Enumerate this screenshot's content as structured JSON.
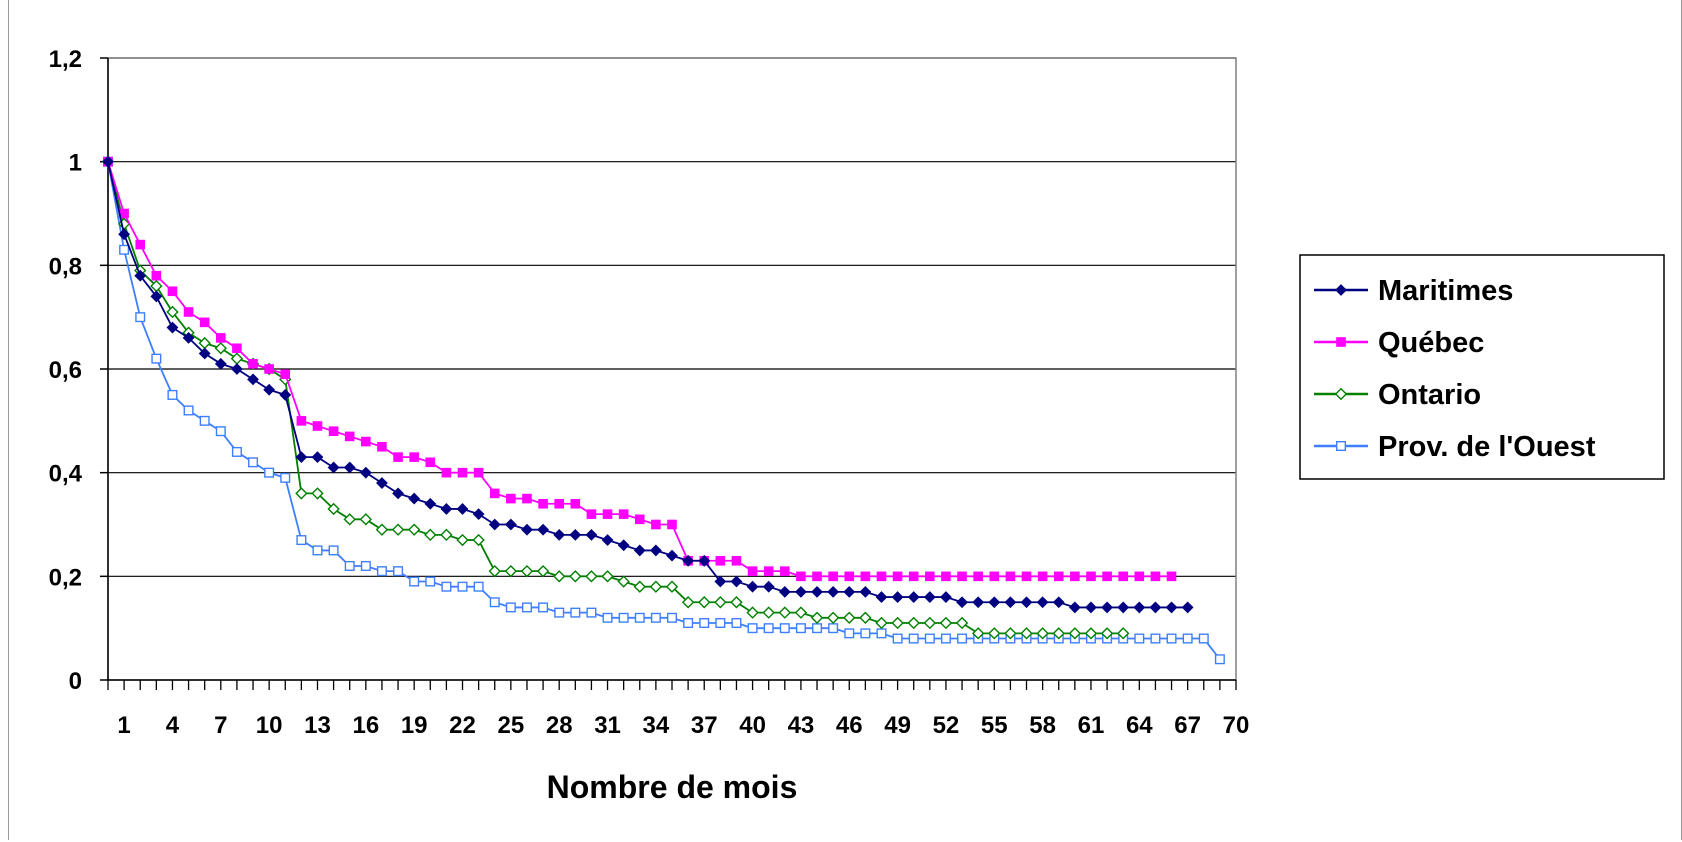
{
  "chart_data": {
    "type": "line",
    "title": "",
    "xlabel": "Nombre de mois",
    "ylabel": "",
    "ylim": [
      0,
      1.2
    ],
    "xlim": [
      0,
      70
    ],
    "y_ticks": [
      "0",
      "0,2",
      "0,4",
      "0,6",
      "0,8",
      "1",
      "1,2"
    ],
    "x_tick_labels": [
      "1",
      "4",
      "7",
      "10",
      "13",
      "16",
      "19",
      "22",
      "25",
      "28",
      "31",
      "34",
      "37",
      "40",
      "43",
      "46",
      "49",
      "52",
      "55",
      "58",
      "61",
      "64",
      "67",
      "70"
    ],
    "grid": "horizontal major gridlines",
    "legend_position": "right",
    "series": [
      {
        "name": "Maritimes",
        "color": "#000080",
        "marker": "diamond-filled",
        "values": [
          1,
          0.86,
          0.78,
          0.74,
          0.68,
          0.66,
          0.63,
          0.61,
          0.6,
          0.58,
          0.56,
          0.55,
          0.43,
          0.43,
          0.41,
          0.41,
          0.4,
          0.38,
          0.36,
          0.35,
          0.34,
          0.33,
          0.33,
          0.32,
          0.3,
          0.3,
          0.29,
          0.29,
          0.28,
          0.28,
          0.28,
          0.27,
          0.26,
          0.25,
          0.25,
          0.24,
          0.23,
          0.23,
          0.19,
          0.19,
          0.18,
          0.18,
          0.17,
          0.17,
          0.17,
          0.17,
          0.17,
          0.17,
          0.16,
          0.16,
          0.16,
          0.16,
          0.16,
          0.15,
          0.15,
          0.15,
          0.15,
          0.15,
          0.15,
          0.15,
          0.14,
          0.14,
          0.14,
          0.14,
          0.14,
          0.14,
          0.14,
          0.14
        ]
      },
      {
        "name": "Québec",
        "color": "#FF00FF",
        "marker": "square-filled",
        "values": [
          1,
          0.9,
          0.84,
          0.78,
          0.75,
          0.71,
          0.69,
          0.66,
          0.64,
          0.61,
          0.6,
          0.59,
          0.5,
          0.49,
          0.48,
          0.47,
          0.46,
          0.45,
          0.43,
          0.43,
          0.42,
          0.4,
          0.4,
          0.4,
          0.36,
          0.35,
          0.35,
          0.34,
          0.34,
          0.34,
          0.32,
          0.32,
          0.32,
          0.31,
          0.3,
          0.3,
          0.23,
          0.23,
          0.23,
          0.23,
          0.21,
          0.21,
          0.21,
          0.2,
          0.2,
          0.2,
          0.2,
          0.2,
          0.2,
          0.2,
          0.2,
          0.2,
          0.2,
          0.2,
          0.2,
          0.2,
          0.2,
          0.2,
          0.2,
          0.2,
          0.2,
          0.2,
          0.2,
          0.2,
          0.2,
          0.2,
          0.2
        ]
      },
      {
        "name": "Ontario",
        "color": "#008000",
        "marker": "diamond-open",
        "values": [
          1,
          0.88,
          0.79,
          0.76,
          0.71,
          0.67,
          0.65,
          0.64,
          0.62,
          0.61,
          0.6,
          0.58,
          0.36,
          0.36,
          0.33,
          0.31,
          0.31,
          0.29,
          0.29,
          0.29,
          0.28,
          0.28,
          0.27,
          0.27,
          0.21,
          0.21,
          0.21,
          0.21,
          0.2,
          0.2,
          0.2,
          0.2,
          0.19,
          0.18,
          0.18,
          0.18,
          0.15,
          0.15,
          0.15,
          0.15,
          0.13,
          0.13,
          0.13,
          0.13,
          0.12,
          0.12,
          0.12,
          0.12,
          0.11,
          0.11,
          0.11,
          0.11,
          0.11,
          0.11,
          0.09,
          0.09,
          0.09,
          0.09,
          0.09,
          0.09,
          0.09,
          0.09,
          0.09,
          0.09
        ]
      },
      {
        "name": "Prov. de l'Ouest",
        "color": "#3F7FFF",
        "marker": "square-open",
        "values": [
          1,
          0.83,
          0.7,
          0.62,
          0.55,
          0.52,
          0.5,
          0.48,
          0.44,
          0.42,
          0.4,
          0.39,
          0.27,
          0.25,
          0.25,
          0.22,
          0.22,
          0.21,
          0.21,
          0.19,
          0.19,
          0.18,
          0.18,
          0.18,
          0.15,
          0.14,
          0.14,
          0.14,
          0.13,
          0.13,
          0.13,
          0.12,
          0.12,
          0.12,
          0.12,
          0.12,
          0.11,
          0.11,
          0.11,
          0.11,
          0.1,
          0.1,
          0.1,
          0.1,
          0.1,
          0.1,
          0.09,
          0.09,
          0.09,
          0.08,
          0.08,
          0.08,
          0.08,
          0.08,
          0.08,
          0.08,
          0.08,
          0.08,
          0.08,
          0.08,
          0.08,
          0.08,
          0.08,
          0.08,
          0.08,
          0.08,
          0.08,
          0.08,
          0.08,
          0.04
        ]
      }
    ]
  }
}
